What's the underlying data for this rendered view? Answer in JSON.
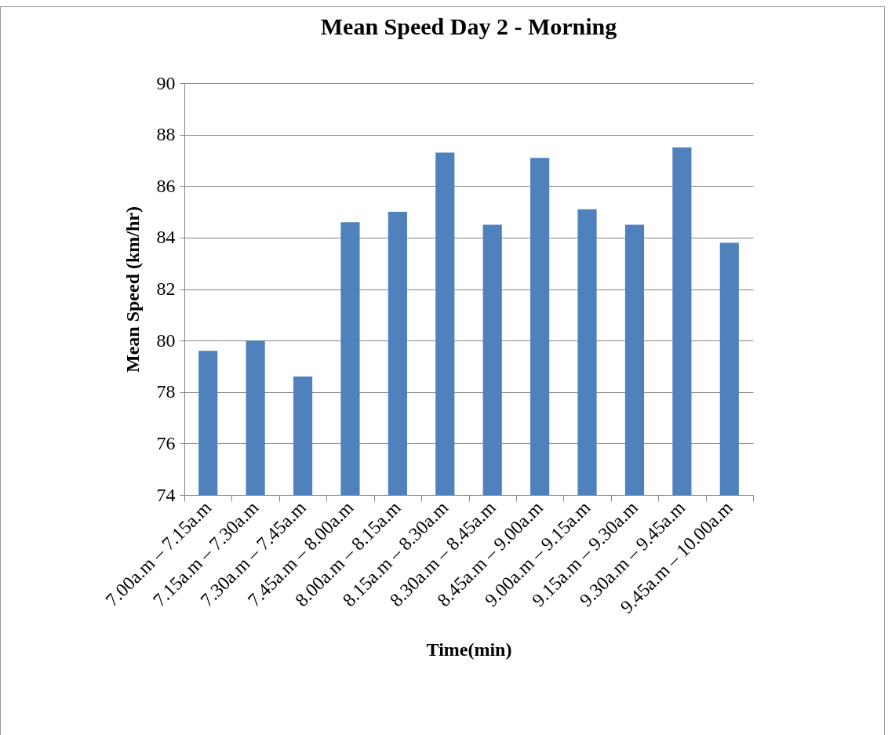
{
  "chart_data": {
    "type": "bar",
    "title": "Mean Speed Day 2 - Morning",
    "xlabel": "Time(min)",
    "ylabel": "Mean Speed (km/hr)",
    "categories": [
      "7.00a.m – 7.15a.m",
      "7.15a.m – 7.30a.m",
      "7.30a.m – 7.45a.m",
      "7.45a.m – 8.00a.m",
      "8.00a.m – 8.15a.m",
      "8.15a.m – 8.30a.m",
      "8.30a.m – 8.45a.m",
      "8.45a.m – 9.00a.m",
      "9.00a.m – 9.15a.m",
      "9.15a.m – 9.30a.m",
      "9.30a.m – 9.45a.m",
      "9.45a.m – 10.00a.m"
    ],
    "values": [
      79.6,
      80.0,
      78.6,
      84.6,
      85.0,
      87.3,
      84.5,
      87.1,
      85.1,
      84.5,
      87.5,
      83.8
    ],
    "color": "#4f81bd",
    "ylim": [
      74,
      90
    ],
    "yticks": [
      74,
      76,
      78,
      80,
      82,
      84,
      86,
      88,
      90
    ],
    "grid": "y",
    "legend": false
  }
}
